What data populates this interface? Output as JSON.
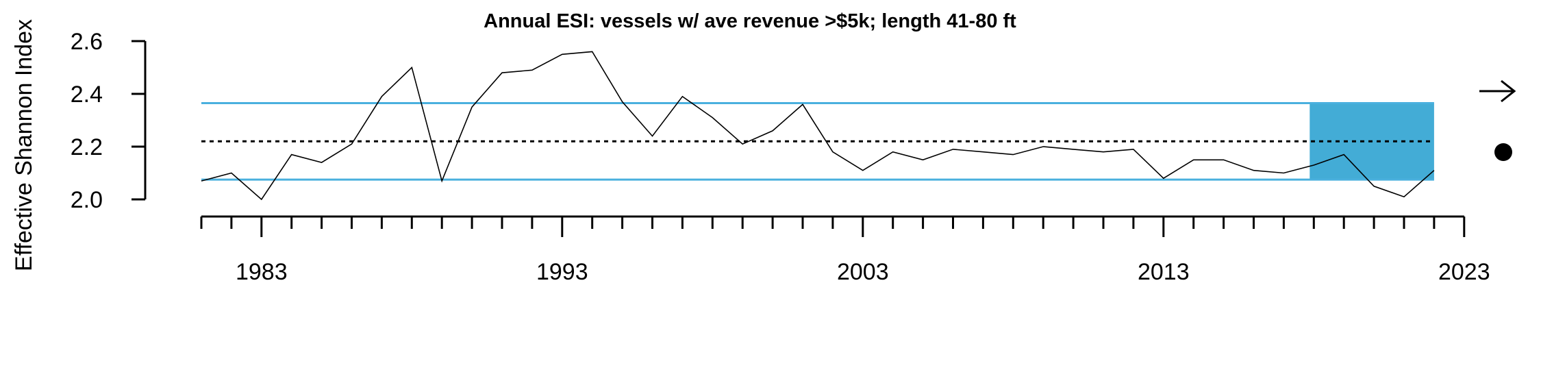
{
  "chart_data": {
    "type": "line",
    "title": "Annual ESI: vessels w/ ave revenue >$5k; length 41-80 ft",
    "xlabel": "",
    "ylabel": "Effective Shannon Index",
    "x_ticks": [
      "1983",
      "1993",
      "2003",
      "2013",
      "2023"
    ],
    "y_ticks": [
      "2.0",
      "2.2",
      "2.4",
      "2.6"
    ],
    "xlim": [
      1981,
      2023
    ],
    "ylim": [
      2.0,
      2.6
    ],
    "grid": false,
    "series": [
      {
        "x": [
          1981,
          1982,
          1983,
          1984,
          1985,
          1986,
          1987,
          1988,
          1989,
          1990,
          1991,
          1992,
          1993,
          1994,
          1995,
          1996,
          1997,
          1998,
          1999,
          2000,
          2001,
          2002,
          2003,
          2004,
          2005,
          2006,
          2007,
          2008,
          2009,
          2010,
          2011,
          2012,
          2013,
          2014,
          2015,
          2016,
          2017,
          2018,
          2019,
          2020,
          2021,
          2022
        ],
        "values": [
          2.07,
          2.1,
          2.0,
          2.17,
          2.14,
          2.21,
          2.39,
          2.5,
          2.07,
          2.35,
          2.48,
          2.49,
          2.55,
          2.56,
          2.37,
          2.24,
          2.39,
          2.31,
          2.21,
          2.26,
          2.36,
          2.18,
          2.11,
          2.18,
          2.15,
          2.19,
          2.18,
          2.17,
          2.2,
          2.19,
          2.18,
          2.19,
          2.08,
          2.15,
          2.15,
          2.11,
          2.1,
          2.13,
          2.17,
          2.05,
          2.01,
          2.11
        ],
        "color": "#000000"
      }
    ],
    "mean": 2.22,
    "upper_band": 2.365,
    "lower_band": 2.075,
    "highlight_range": [
      2018,
      2022
    ],
    "trend_symbol": "→",
    "status_symbol": "●",
    "colors": {
      "band": "#4ab0de",
      "highlight": "#43acd6",
      "line": "#000000"
    }
  }
}
